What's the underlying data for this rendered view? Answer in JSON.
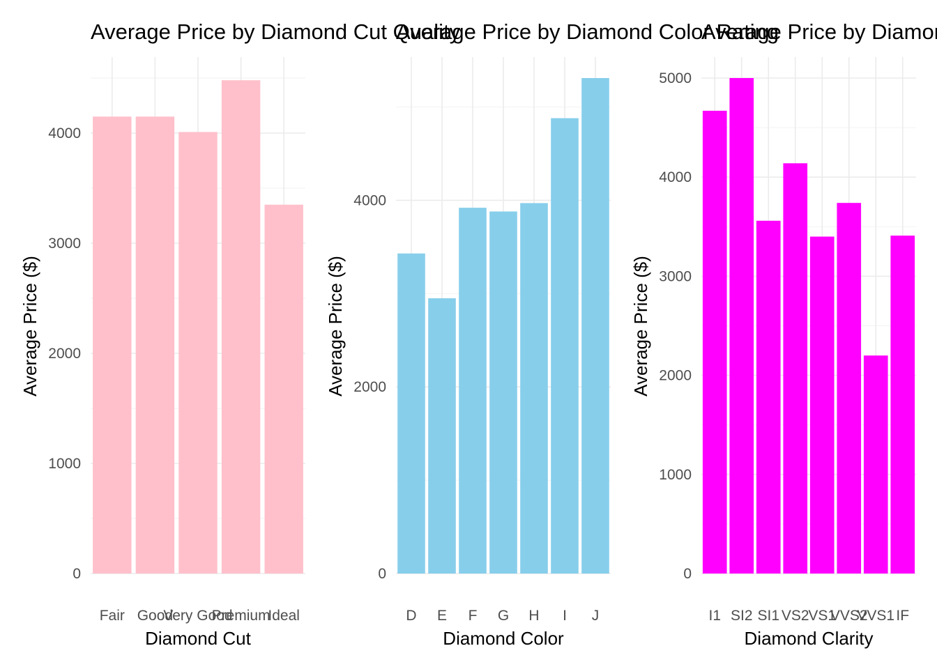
{
  "chart_data": [
    {
      "type": "bar",
      "title": "Average Price by Diamond Cut Quality",
      "xlabel": "Diamond Cut",
      "ylabel": "Average Price ($)",
      "color": "#FFC0CB",
      "categories": [
        "Fair",
        "Good",
        "Very Good",
        "Premium",
        "Ideal"
      ],
      "values": [
        4150,
        4150,
        4010,
        4480,
        3350
      ],
      "ylim": [
        0,
        4500
      ],
      "yticks": [
        0,
        1000,
        2000,
        3000,
        4000
      ],
      "grid": true
    },
    {
      "type": "bar",
      "title": "Average Price by Diamond Color Rating",
      "xlabel": "Diamond Color",
      "ylabel": "Average Price ($)",
      "color": "#87CEEB",
      "categories": [
        "D",
        "E",
        "F",
        "G",
        "H",
        "I",
        "J"
      ],
      "values": [
        3430,
        2950,
        3920,
        3880,
        3970,
        4880,
        5310
      ],
      "ylim": [
        0,
        5310
      ],
      "yticks": [
        0,
        2000,
        4000
      ],
      "grid": true
    },
    {
      "type": "bar",
      "title": "Average Price by Diamond Clarity",
      "xlabel": "Diamond Clarity",
      "ylabel": "Average Price ($)",
      "color": "#FF00FF",
      "categories": [
        "I1",
        "SI2",
        "SI1",
        "VS2",
        "VS1",
        "VVS2",
        "VVS1",
        "IF"
      ],
      "values": [
        4670,
        5000,
        3560,
        4140,
        3400,
        3740,
        2200,
        3410
      ],
      "ylim": [
        0,
        5000
      ],
      "yticks": [
        0,
        1000,
        2000,
        3000,
        4000,
        5000
      ],
      "grid": true
    }
  ]
}
